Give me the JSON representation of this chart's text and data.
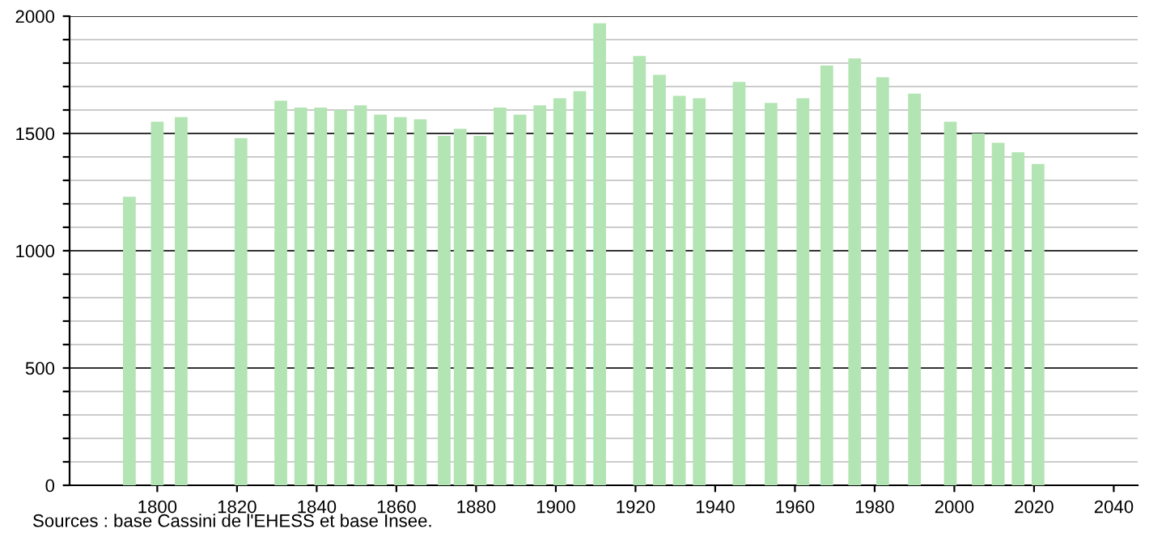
{
  "chart_data": {
    "type": "bar",
    "x": [
      1793,
      1800,
      1806,
      1821,
      1831,
      1836,
      1841,
      1846,
      1851,
      1856,
      1861,
      1866,
      1872,
      1876,
      1881,
      1886,
      1891,
      1896,
      1901,
      1906,
      1911,
      1921,
      1926,
      1931,
      1936,
      1946,
      1954,
      1962,
      1968,
      1975,
      1982,
      1990,
      1999,
      2006,
      2011,
      2016,
      2021
    ],
    "values": [
      1230,
      1550,
      1570,
      1480,
      1640,
      1610,
      1610,
      1600,
      1620,
      1580,
      1570,
      1560,
      1490,
      1520,
      1490,
      1610,
      1580,
      1620,
      1650,
      1680,
      1970,
      1830,
      1750,
      1660,
      1650,
      1720,
      1630,
      1650,
      1790,
      1820,
      1740,
      1670,
      1550,
      1500,
      1460,
      1420,
      1370
    ],
    "color": "#b3e4b3",
    "xlim": [
      1778,
      2046
    ],
    "xticks": [
      1800,
      1820,
      1840,
      1860,
      1880,
      1900,
      1920,
      1940,
      1960,
      1980,
      2000,
      2020,
      2040
    ],
    "ylim": [
      0,
      2000
    ],
    "yticks": [
      0,
      {
        "value": 100,
        "label": null
      },
      {
        "value": 200,
        "label": null
      },
      {
        "value": 300,
        "label": null
      },
      {
        "value": 400,
        "label": null
      },
      500,
      {
        "value": 600,
        "label": null
      },
      {
        "value": 700,
        "label": null
      },
      {
        "value": 800,
        "label": null
      },
      {
        "value": 900,
        "label": null
      },
      1000,
      {
        "value": 1100,
        "label": null
      },
      {
        "value": 1200,
        "label": null
      },
      {
        "value": 1300,
        "label": null
      },
      {
        "value": 1400,
        "label": null
      },
      1500,
      {
        "value": 1600,
        "label": null
      },
      {
        "value": 1700,
        "label": null
      },
      {
        "value": 1800,
        "label": null
      },
      {
        "value": 1900,
        "label": null
      },
      2000
    ],
    "grid": "y",
    "annotations": [
      "Sources : base Cassini de l'EHESS et base Insee."
    ]
  }
}
